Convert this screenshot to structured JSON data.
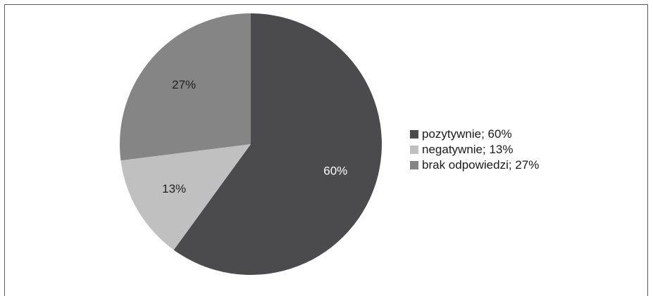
{
  "chart_data": {
    "type": "pie",
    "categories": [
      "pozytywnie",
      "negatywnie",
      "brak odpowiedzi"
    ],
    "values": [
      60,
      13,
      27
    ],
    "data_labels": [
      "60%",
      "13%",
      "27%"
    ],
    "legend_labels": [
      "pozytywnie; 60%",
      "negatywnie; 13%",
      "brak odpowiedzi; 27%"
    ],
    "colors": [
      "#4b4b4d",
      "#c0c0c0",
      "#858585"
    ],
    "label_colors": [
      "#ffffff",
      "#222222",
      "#222222"
    ],
    "start_angle": "12 o'clock",
    "direction": "clockwise",
    "legend_position": "right",
    "title": ""
  }
}
